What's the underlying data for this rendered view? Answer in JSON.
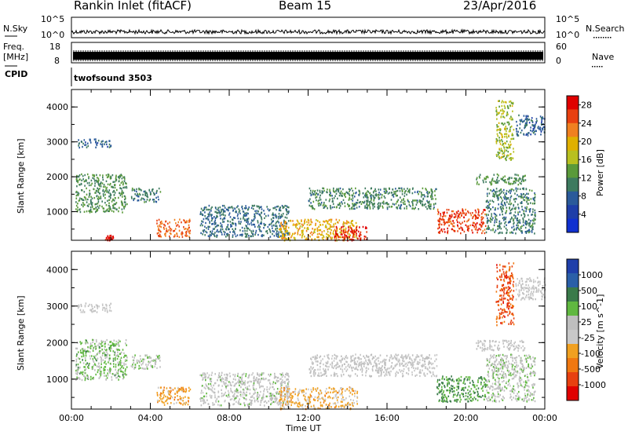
{
  "header": {
    "title": "Rankin Inlet (fitACF)",
    "beam": "Beam 15",
    "date": "23/Apr/2016"
  },
  "panels": {
    "nsky_label": "N.Sky",
    "nsky_ticks": [
      "10^5",
      "10^0"
    ],
    "nsearch_label": "N.Search",
    "freq_label_1": "Freq.",
    "freq_label_2": "[MHz]",
    "freq_ticks": [
      "18",
      "8"
    ],
    "nave_label": "Nave",
    "nave_ticks": [
      "60",
      "0"
    ],
    "cpid_label": "CPID",
    "cpid_value": "twofsound 3503"
  },
  "colors": {
    "power": [
      "#1030d0",
      "#1e3ea8",
      "#2a5a9a",
      "#3d7a5f",
      "#5a9a3a",
      "#b8c020",
      "#e0b000",
      "#f08020",
      "#e84010",
      "#e00000"
    ],
    "velocity": [
      "#1f3faa",
      "#2a5fa8",
      "#3a7a4a",
      "#60b840",
      "#bebebe",
      "#c8c8c8",
      "#f0a020",
      "#f07810",
      "#e84010",
      "#e00000"
    ]
  },
  "chart_data": [
    {
      "type": "heatmap",
      "title": "",
      "xlabel": "Time UT",
      "ylabel": "Slant Range [km]",
      "xticks": [
        "00:00",
        "04:00",
        "08:00",
        "12:00",
        "16:00",
        "20:00",
        "00:00"
      ],
      "yticks": [
        "1000",
        "2000",
        "3000",
        "4000"
      ],
      "xlim": [
        0,
        24
      ],
      "ylim": [
        180,
        4500
      ],
      "colorbar_label": "Power [dB]",
      "colorbar_ticks": [
        "4",
        "8",
        "12",
        "16",
        "20",
        "24",
        "28"
      ],
      "clim": [
        0,
        30
      ],
      "regions": [
        {
          "t": [
            0.2,
            2.8
          ],
          "r": [
            1000,
            2100
          ],
          "level": 12
        },
        {
          "t": [
            0.3,
            2.0
          ],
          "r": [
            2850,
            3100
          ],
          "level": 8
        },
        {
          "t": [
            3.0,
            4.5
          ],
          "r": [
            1300,
            1700
          ],
          "level": 10
        },
        {
          "t": [
            4.3,
            6.0
          ],
          "r": [
            300,
            800
          ],
          "level": 24
        },
        {
          "t": [
            1.7,
            2.1
          ],
          "r": [
            200,
            350
          ],
          "level": 28
        },
        {
          "t": [
            6.5,
            11.0
          ],
          "r": [
            300,
            1200
          ],
          "level": 9
        },
        {
          "t": [
            10.5,
            14.5
          ],
          "r": [
            200,
            800
          ],
          "level": 20
        },
        {
          "t": [
            13.3,
            15.0
          ],
          "r": [
            200,
            600
          ],
          "level": 28
        },
        {
          "t": [
            12.0,
            18.5
          ],
          "r": [
            1100,
            1700
          ],
          "level": 11
        },
        {
          "t": [
            18.5,
            21.0
          ],
          "r": [
            400,
            1100
          ],
          "level": 26
        },
        {
          "t": [
            20.5,
            23.0
          ],
          "r": [
            1800,
            2100
          ],
          "level": 12
        },
        {
          "t": [
            21.0,
            23.5
          ],
          "r": [
            400,
            1700
          ],
          "level": 10
        },
        {
          "t": [
            21.5,
            22.4
          ],
          "r": [
            2500,
            4200
          ],
          "level": 16
        },
        {
          "t": [
            22.5,
            24.0
          ],
          "r": [
            3200,
            3800
          ],
          "level": 8
        }
      ]
    },
    {
      "type": "heatmap",
      "title": "",
      "xlabel": "Time UT",
      "ylabel": "Slant Range [km]",
      "xticks": [
        "00:00",
        "04:00",
        "08:00",
        "12:00",
        "16:00",
        "20:00",
        "00:00"
      ],
      "yticks": [
        "1000",
        "2000",
        "3000",
        "4000"
      ],
      "xlim": [
        0,
        24
      ],
      "ylim": [
        180,
        4500
      ],
      "colorbar_label": "Velocity [m s^-1]",
      "colorbar_ticks": [
        "1000",
        "500",
        "100",
        "25",
        "-25",
        "-100",
        "-500",
        "-1000"
      ],
      "clim": [
        -1200,
        1200
      ],
      "regions": [
        {
          "t": [
            0.2,
            2.8
          ],
          "r": [
            1000,
            2100
          ],
          "level": 300
        },
        {
          "t": [
            0.3,
            2.0
          ],
          "r": [
            2850,
            3100
          ],
          "level": 0
        },
        {
          "t": [
            3.0,
            4.5
          ],
          "r": [
            1300,
            1700
          ],
          "level": 200
        },
        {
          "t": [
            4.3,
            6.0
          ],
          "r": [
            300,
            800
          ],
          "level": -400
        },
        {
          "t": [
            6.5,
            11.0
          ],
          "r": [
            300,
            1200
          ],
          "level": 80
        },
        {
          "t": [
            10.5,
            14.5
          ],
          "r": [
            200,
            800
          ],
          "level": -300
        },
        {
          "t": [
            12.0,
            18.5
          ],
          "r": [
            1100,
            1700
          ],
          "level": 0
        },
        {
          "t": [
            18.5,
            21.0
          ],
          "r": [
            400,
            1100
          ],
          "level": 500
        },
        {
          "t": [
            20.5,
            23.0
          ],
          "r": [
            1800,
            2100
          ],
          "level": 0
        },
        {
          "t": [
            21.0,
            23.5
          ],
          "r": [
            400,
            1700
          ],
          "level": 150
        },
        {
          "t": [
            21.5,
            22.4
          ],
          "r": [
            2500,
            4200
          ],
          "level": -800
        },
        {
          "t": [
            22.5,
            24.0
          ],
          "r": [
            3200,
            3800
          ],
          "level": 0
        }
      ]
    }
  ]
}
